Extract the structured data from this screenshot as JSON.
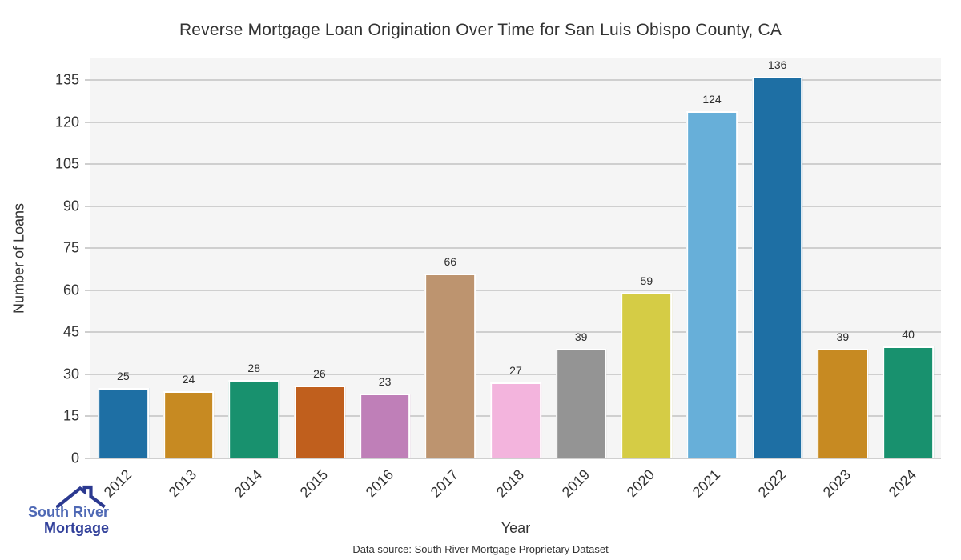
{
  "title": "Reverse Mortgage Loan Origination Over Time for San Luis Obispo County, CA",
  "chart_data": {
    "type": "bar",
    "title": "Reverse Mortgage Loan Origination Over Time for San Luis Obispo County, CA",
    "xlabel": "Year",
    "ylabel": "Number of Loans",
    "categories": [
      "2012",
      "2013",
      "2014",
      "2015",
      "2016",
      "2017",
      "2018",
      "2019",
      "2020",
      "2021",
      "2022",
      "2023",
      "2024"
    ],
    "values": [
      25,
      24,
      28,
      26,
      23,
      66,
      27,
      39,
      59,
      124,
      136,
      39,
      40
    ],
    "bar_colors": [
      "#1e6fa4",
      "#c78a22",
      "#18916e",
      "#c05f1d",
      "#bf7fb8",
      "#bd946f",
      "#f3b4dd",
      "#949494",
      "#d5cc45",
      "#67afd9",
      "#1e6fa4",
      "#c78a22",
      "#18916e"
    ],
    "yticks": [
      0,
      15,
      30,
      45,
      60,
      75,
      90,
      105,
      120,
      135
    ],
    "ylim": [
      0,
      142.7
    ],
    "grid": "horizontal",
    "legend": "none",
    "plot_bg_color": "#f5f5f5",
    "grid_color": "#cfcfcf",
    "value_label_color": "#2e2e2e",
    "tick_label_color": "#333333"
  },
  "footer": {
    "data_source": "Data source: South River Mortgage Proprietary Dataset"
  },
  "logo": {
    "line1": "South River",
    "line2": "Mortgage",
    "line1_color": "#4f69b5",
    "line2_color": "#303f9a",
    "roof_color": "#2b3990"
  }
}
